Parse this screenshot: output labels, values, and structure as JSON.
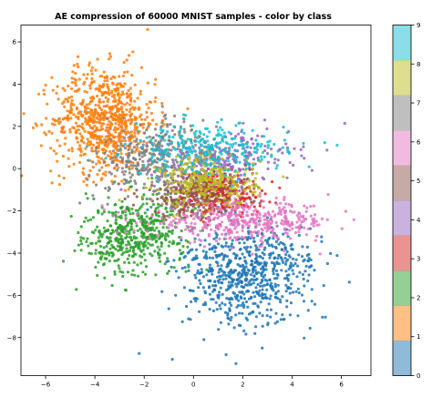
{
  "chart_data": {
    "type": "scatter",
    "title": "AE compression of 60000 MNIST samples - color by class",
    "xlabel": "",
    "ylabel": "",
    "xlim": [
      -7,
      7.2
    ],
    "ylim": [
      -9.8,
      6.8
    ],
    "x_ticks": [
      -6,
      -4,
      -2,
      0,
      2,
      4,
      6
    ],
    "x_tick_labels": [
      "−6",
      "−4",
      "−2",
      "0",
      "2",
      "4",
      "6"
    ],
    "y_ticks": [
      6,
      4,
      2,
      0,
      -2,
      -4,
      -6,
      -8
    ],
    "y_tick_labels": [
      "6",
      "4",
      "2",
      "0",
      "−2",
      "−4",
      "−6",
      "−8"
    ],
    "grid": false,
    "colormap": "tab10",
    "colorbar": {
      "min": 0,
      "max": 9,
      "ticks": [
        0,
        1,
        2,
        3,
        4,
        5,
        6,
        7,
        8,
        9
      ],
      "tick_labels": [
        "0",
        "1",
        "2",
        "3",
        "4",
        "5",
        "6",
        "7",
        "8",
        "9"
      ],
      "colors": [
        "#1f77b4",
        "#ff7f0e",
        "#2ca02c",
        "#d62728",
        "#9467bd",
        "#8c564b",
        "#e377c2",
        "#7f7f7f",
        "#bcbd22",
        "#17becf"
      ],
      "alpha": 0.5
    },
    "series": [
      {
        "class": 0,
        "color": "#1f77b4",
        "count": 700,
        "center": [
          2.2,
          -5.0
        ],
        "spread": [
          1.25,
          1.3
        ],
        "rotation_deg": -30
      },
      {
        "class": 1,
        "color": "#ff7f0e",
        "count": 750,
        "center": [
          -3.6,
          2.3
        ],
        "spread": [
          1.05,
          1.25
        ],
        "rotation_deg": 0
      },
      {
        "class": 2,
        "color": "#2ca02c",
        "count": 500,
        "center": [
          -2.4,
          -3.1
        ],
        "spread": [
          1.05,
          0.9
        ],
        "rotation_deg": 20
      },
      {
        "class": 3,
        "color": "#d62728",
        "count": 320,
        "center": [
          1.0,
          -1.2
        ],
        "spread": [
          0.9,
          0.5
        ],
        "rotation_deg": 0
      },
      {
        "class": 4,
        "color": "#9467bd",
        "count": 260,
        "center": [
          1.2,
          0.4
        ],
        "spread": [
          1.4,
          0.6
        ],
        "rotation_deg": 5
      },
      {
        "class": 5,
        "color": "#8c564b",
        "count": 250,
        "center": [
          0.0,
          -1.2
        ],
        "spread": [
          1.1,
          0.6
        ],
        "rotation_deg": 0
      },
      {
        "class": 6,
        "color": "#e377c2",
        "count": 420,
        "center": [
          2.0,
          -2.5
        ],
        "spread": [
          1.9,
          0.45
        ],
        "rotation_deg": 0
      },
      {
        "class": 7,
        "color": "#7f7f7f",
        "count": 330,
        "center": [
          -1.6,
          0.6
        ],
        "spread": [
          1.1,
          0.8
        ],
        "rotation_deg": 25
      },
      {
        "class": 8,
        "color": "#bcbd22",
        "count": 300,
        "center": [
          0.6,
          -0.6
        ],
        "spread": [
          1.0,
          0.6
        ],
        "rotation_deg": 0
      },
      {
        "class": 9,
        "color": "#17becf",
        "count": 280,
        "center": [
          0.6,
          0.9
        ],
        "spread": [
          1.6,
          0.6
        ],
        "rotation_deg": 0
      }
    ],
    "marker_alpha": 0.85
  }
}
